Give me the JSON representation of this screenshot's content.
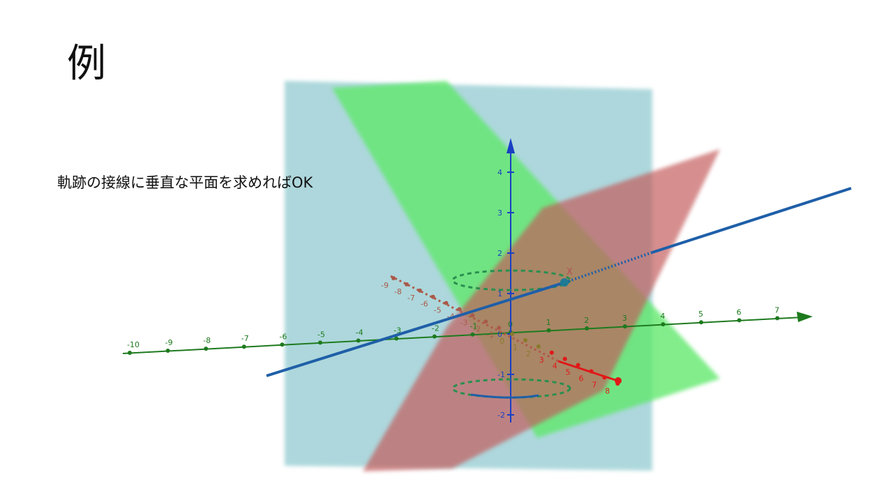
{
  "slide": {
    "title": "例",
    "body_text": "軌跡の接線に垂直な平面を求めればOK"
  },
  "scene": {
    "point_label": "X",
    "colors": {
      "plane_cyan": "#8ec9cf",
      "plane_green": "#5ee86a",
      "plane_red": "#c45a5a",
      "line_blue": "#1f5fa8",
      "axis_green": "#1e7a1e",
      "axis_blue": "#1a3fc4",
      "axis_red": "#e01818"
    },
    "green_axis_ticks": [
      "-10",
      "-9",
      "-8",
      "-7",
      "-6",
      "-5",
      "-4",
      "-3",
      "-2",
      "-1",
      "0",
      "1",
      "2",
      "3",
      "4",
      "5",
      "6",
      "7"
    ],
    "blue_axis_ticks": [
      "4",
      "3",
      "2",
      "1",
      "0",
      "-1",
      "-2"
    ],
    "red_axis_ticks": [
      "-9",
      "-8",
      "-7",
      "-6",
      "-5",
      "-4",
      "-3",
      "-2",
      "-1",
      "0",
      "1",
      "2",
      "3",
      "4",
      "5",
      "6",
      "7",
      "8"
    ]
  }
}
